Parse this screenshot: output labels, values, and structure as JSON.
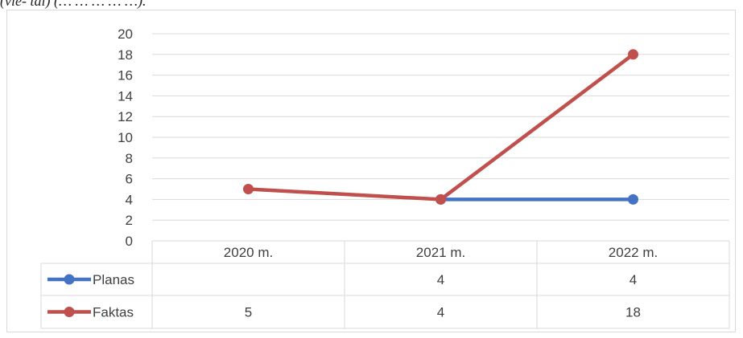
{
  "header_text": "(vie- tai) (… … … … …).",
  "chart_data": {
    "type": "line",
    "categories": [
      "2020 m.",
      "2021 m.",
      "2022 m."
    ],
    "series": [
      {
        "name": "Planas",
        "values": [
          null,
          4,
          4
        ],
        "color": "#4472c4"
      },
      {
        "name": "Faktas",
        "values": [
          5,
          4,
          18
        ],
        "color": "#c0504d"
      }
    ],
    "ylim": [
      0,
      20
    ],
    "yticks": [
      "0",
      "2",
      "4",
      "6",
      "8",
      "10",
      "12",
      "14",
      "16",
      "18",
      "20"
    ],
    "grid": true,
    "legend": "data-table",
    "data_table": {
      "rows": [
        {
          "label": "Planas",
          "cells": [
            "",
            "4",
            "4"
          ]
        },
        {
          "label": "Faktas",
          "cells": [
            "5",
            "4",
            "18"
          ]
        }
      ]
    }
  }
}
